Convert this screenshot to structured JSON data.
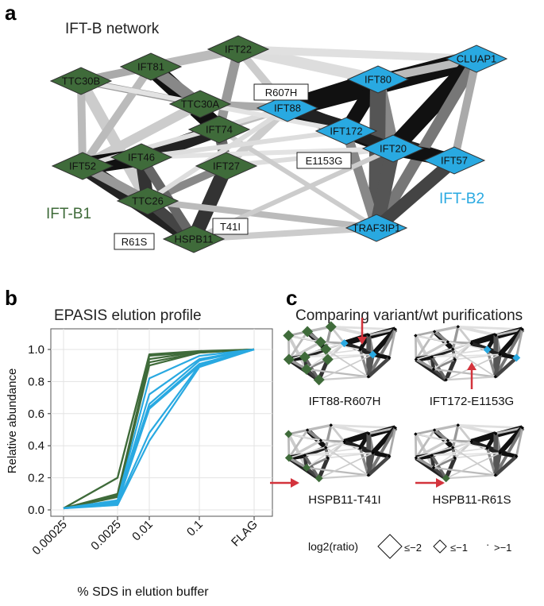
{
  "figure": {
    "panel_a": {
      "letter": "a",
      "title": "IFT-B network",
      "group_b1": "IFT-B1",
      "group_b2": "IFT-B2",
      "nodes_b1": [
        "TTC30B",
        "IFT81",
        "IFT22",
        "TTC30A",
        "IFT74",
        "IFT46",
        "IFT52",
        "IFT27",
        "TTC26",
        "HSPB11"
      ],
      "nodes_b2": [
        "IFT80",
        "CLUAP1",
        "IFT88",
        "IFT172",
        "IFT20",
        "IFT57",
        "TRAF3IP1"
      ],
      "mutations": [
        "R607H",
        "E1153G",
        "T41I",
        "R61S"
      ]
    },
    "panel_b": {
      "letter": "b",
      "title": "EPASIS elution profile",
      "xlabel": "% SDS in elution buffer",
      "ylabel": "Relative abundance"
    },
    "panel_c": {
      "letter": "c",
      "title": "Comparing variant/wt purifications",
      "subplots": [
        "IFT88-R607H",
        "IFT172-E1153G",
        "HSPB11-T41I",
        "HSPB11-R61S"
      ],
      "legend": {
        "label": "log2(ratio)",
        "items": [
          "≤−2",
          "≤−1",
          "·",
          ">−1"
        ]
      }
    },
    "colors": {
      "b1": "#3f6b3a",
      "b2": "#29a9e1",
      "arrow": "#d3333c"
    }
  },
  "chart_data": {
    "type": "line",
    "xlabel": "% SDS in elution buffer",
    "ylabel": "Relative abundance",
    "categories": [
      "0.00025",
      "0.0025",
      "0.01",
      "0.1",
      "FLAG"
    ],
    "ylim": [
      0,
      1.0
    ],
    "yticks": [
      0.0,
      0.2,
      0.4,
      0.6,
      0.8,
      1.0
    ],
    "grid": true,
    "series": [
      {
        "group": "IFT-B1",
        "color": "#3f6b3a",
        "values": [
          0.01,
          0.2,
          0.97,
          0.99,
          1.0
        ]
      },
      {
        "group": "IFT-B1",
        "color": "#3f6b3a",
        "values": [
          0.01,
          0.2,
          0.96,
          0.985,
          1.0
        ]
      },
      {
        "group": "IFT-B1",
        "color": "#3f6b3a",
        "values": [
          0.01,
          0.1,
          0.94,
          0.985,
          1.0
        ]
      },
      {
        "group": "IFT-B1",
        "color": "#3f6b3a",
        "values": [
          0.01,
          0.09,
          0.92,
          0.98,
          1.0
        ]
      },
      {
        "group": "IFT-B1",
        "color": "#3f6b3a",
        "values": [
          0.01,
          0.08,
          0.9,
          0.98,
          1.0
        ]
      },
      {
        "group": "IFT-B2",
        "color": "#29a9e1",
        "values": [
          0.01,
          0.06,
          0.82,
          0.96,
          1.0
        ]
      },
      {
        "group": "IFT-B2",
        "color": "#29a9e1",
        "values": [
          0.01,
          0.05,
          0.72,
          0.94,
          1.0
        ]
      },
      {
        "group": "IFT-B2",
        "color": "#29a9e1",
        "values": [
          0.01,
          0.05,
          0.66,
          0.93,
          1.0
        ]
      },
      {
        "group": "IFT-B2",
        "color": "#29a9e1",
        "values": [
          0.01,
          0.05,
          0.64,
          0.91,
          1.0
        ]
      },
      {
        "group": "IFT-B2",
        "color": "#29a9e1",
        "values": [
          0.01,
          0.04,
          0.63,
          0.9,
          1.0
        ]
      },
      {
        "group": "IFT-B2",
        "color": "#29a9e1",
        "values": [
          0.01,
          0.04,
          0.48,
          0.9,
          1.0
        ]
      },
      {
        "group": "IFT-B2",
        "color": "#29a9e1",
        "values": [
          0.01,
          0.03,
          0.43,
          0.89,
          1.0
        ]
      }
    ]
  }
}
